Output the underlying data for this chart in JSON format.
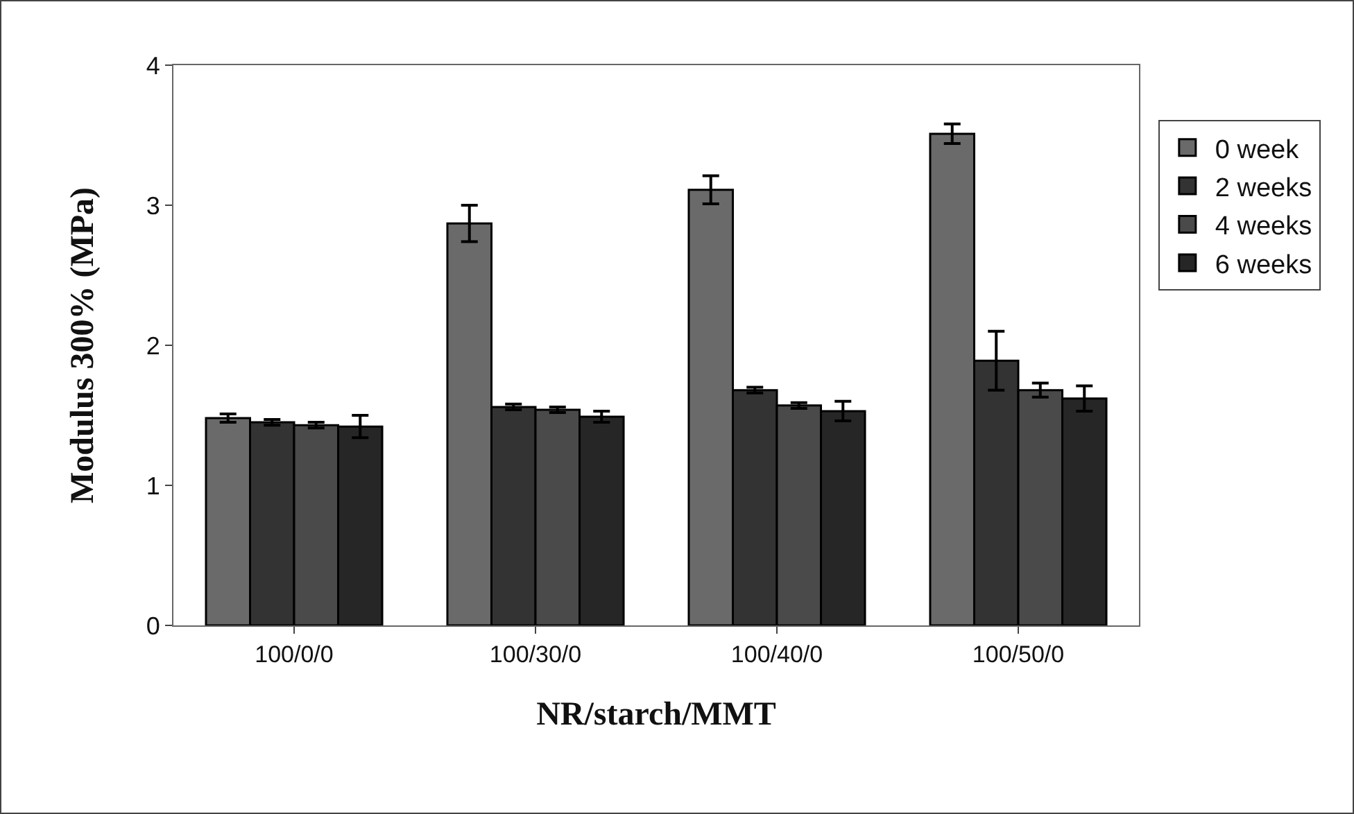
{
  "chart_data": {
    "type": "bar",
    "xlabel": "NR/starch/MMT",
    "ylabel": "Modulus 300% (MPa)",
    "categories": [
      "100/0/0",
      "100/30/0",
      "100/40/0",
      "100/50/0"
    ],
    "series": [
      {
        "name": "0 week",
        "color": "#6a6a6a",
        "values": [
          1.48,
          2.87,
          3.11,
          3.51
        ],
        "errors": [
          0.03,
          0.13,
          0.1,
          0.07
        ]
      },
      {
        "name": "2 weeks",
        "color": "#333333",
        "values": [
          1.45,
          1.56,
          1.68,
          1.89
        ],
        "errors": [
          0.02,
          0.02,
          0.02,
          0.21
        ]
      },
      {
        "name": "4 weeks",
        "color": "#4a4a4a",
        "values": [
          1.43,
          1.54,
          1.57,
          1.68
        ],
        "errors": [
          0.02,
          0.02,
          0.02,
          0.05
        ]
      },
      {
        "name": "6 weeks",
        "color": "#262626",
        "values": [
          1.42,
          1.49,
          1.53,
          1.62
        ],
        "errors": [
          0.08,
          0.04,
          0.07,
          0.09
        ]
      }
    ],
    "ylim": [
      0,
      4
    ],
    "yticks": [
      0,
      1,
      2,
      3,
      4
    ],
    "grid": false,
    "legend": "right"
  }
}
